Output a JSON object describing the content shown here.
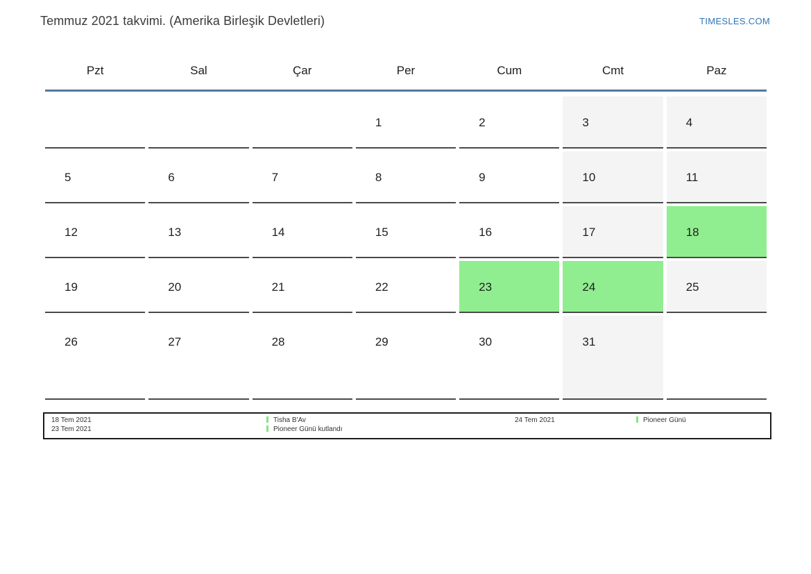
{
  "header": {
    "title": "Temmuz 2021 takvimi. (Amerika Birleşik Devletleri)",
    "brand_link": "TIMESLES.COM"
  },
  "calendar": {
    "weekday_headers": [
      "Pzt",
      "Sal",
      "Çar",
      "Per",
      "Cum",
      "Cmt",
      "Paz"
    ],
    "weeks": [
      [
        "",
        "",
        "",
        "1",
        "2",
        "3",
        "4"
      ],
      [
        "5",
        "6",
        "7",
        "8",
        "9",
        "10",
        "11"
      ],
      [
        "12",
        "13",
        "14",
        "15",
        "16",
        "17",
        "18"
      ],
      [
        "19",
        "20",
        "21",
        "22",
        "23",
        "24",
        "25"
      ],
      [
        "26",
        "27",
        "28",
        "29",
        "30",
        "31",
        ""
      ]
    ],
    "highlighted_days": [
      "18",
      "23",
      "24"
    ],
    "weekend_shaded_days": [
      "3",
      "4",
      "10",
      "11",
      "17",
      "25",
      "31"
    ],
    "colors": {
      "highlight_green": "#90ee90",
      "weekend_gray": "#f4f4f4",
      "header_rule_blue": "#54779d",
      "link_blue": "#2e75b6"
    }
  },
  "legend": {
    "groups": [
      {
        "dates": [
          "18 Tem 2021",
          "23 Tem 2021"
        ],
        "events": [
          "Tisha B'Av",
          "Pioneer Günü kutlandı"
        ]
      },
      {
        "dates": [
          "24 Tem 2021"
        ],
        "events": [
          "Pioneer Günü"
        ]
      }
    ]
  }
}
